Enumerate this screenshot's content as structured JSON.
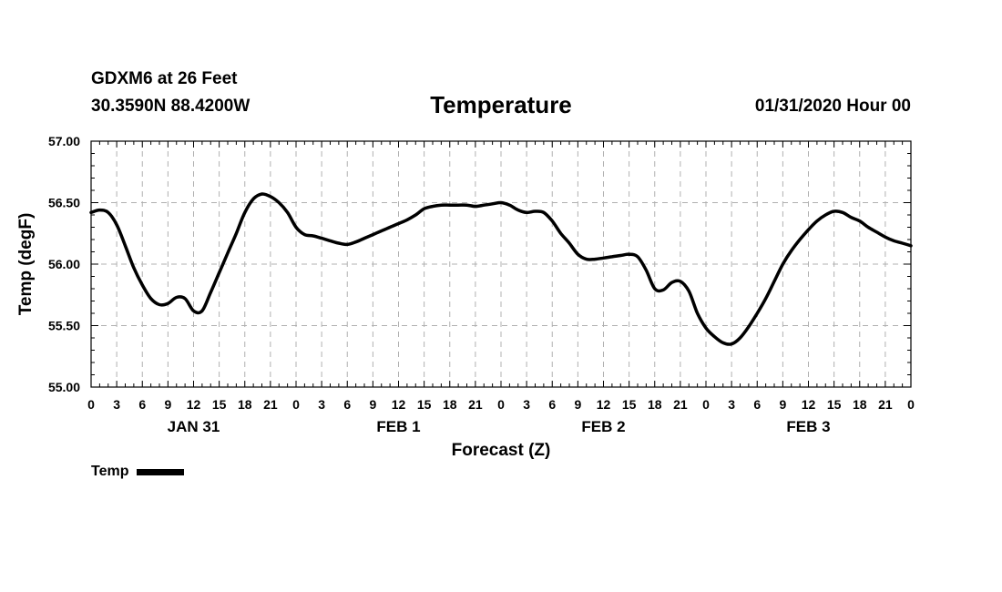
{
  "header": {
    "station": "GDXM6 at 26 Feet",
    "coords": "30.3590N 88.4200W",
    "title": "Temperature",
    "issued": "01/31/2020 Hour 00"
  },
  "legend": {
    "label": "Temp"
  },
  "chart_data": {
    "type": "line",
    "title": "Temperature",
    "xlabel": "Forecast (Z)",
    "ylabel": "Temp (degF)",
    "ylim": [
      55.0,
      57.0
    ],
    "yticks": [
      "55.00",
      "55.50",
      "56.00",
      "56.50",
      "57.00"
    ],
    "xlim_hours": [
      0,
      96
    ],
    "xtick_labels": [
      "0",
      "3",
      "6",
      "9",
      "12",
      "15",
      "18",
      "21",
      "0",
      "3",
      "6",
      "9",
      "12",
      "15",
      "18",
      "21",
      "0",
      "3",
      "6",
      "9",
      "12",
      "15",
      "18",
      "21",
      "0",
      "3",
      "6",
      "9",
      "12",
      "15",
      "18",
      "21",
      "0"
    ],
    "day_labels": [
      {
        "label": "JAN 31",
        "hour": 12
      },
      {
        "label": "FEB 1",
        "hour": 36
      },
      {
        "label": "FEB 2",
        "hour": 60
      },
      {
        "label": "FEB 3",
        "hour": 84
      }
    ],
    "grid": true,
    "legend_position": "bottom-left",
    "series": [
      {
        "name": "Temp",
        "x": [
          0,
          1,
          2,
          3,
          4,
          5,
          6,
          7,
          8,
          9,
          10,
          11,
          12,
          13,
          14,
          15,
          16,
          17,
          18,
          19,
          20,
          21,
          22,
          23,
          24,
          25,
          26,
          27,
          28,
          29,
          30,
          31,
          32,
          33,
          34,
          35,
          36,
          37,
          38,
          39,
          40,
          41,
          42,
          43,
          44,
          45,
          46,
          47,
          48,
          49,
          50,
          51,
          52,
          53,
          54,
          55,
          56,
          57,
          58,
          59,
          60,
          61,
          62,
          63,
          64,
          65,
          66,
          67,
          68,
          69,
          70,
          71,
          72,
          73,
          74,
          75,
          76,
          77,
          78,
          79,
          80,
          81,
          82,
          83,
          84,
          85,
          86,
          87,
          88,
          89,
          90,
          91,
          92,
          93,
          94,
          95,
          96
        ],
        "values": [
          56.42,
          56.44,
          56.42,
          56.32,
          56.15,
          55.97,
          55.83,
          55.72,
          55.67,
          55.68,
          55.73,
          55.72,
          55.62,
          55.62,
          55.77,
          55.93,
          56.09,
          56.25,
          56.42,
          56.53,
          56.57,
          56.55,
          56.5,
          56.42,
          56.3,
          56.24,
          56.23,
          56.21,
          56.19,
          56.17,
          56.16,
          56.18,
          56.21,
          56.24,
          56.27,
          56.3,
          56.33,
          56.36,
          56.4,
          56.45,
          56.47,
          56.48,
          56.48,
          56.48,
          56.48,
          56.47,
          56.48,
          56.49,
          56.5,
          56.48,
          56.44,
          56.42,
          56.43,
          56.42,
          56.35,
          56.25,
          56.17,
          56.08,
          56.04,
          56.04,
          56.05,
          56.06,
          56.07,
          56.08,
          56.06,
          55.95,
          55.8,
          55.79,
          55.85,
          55.86,
          55.78,
          55.6,
          55.48,
          55.41,
          55.36,
          55.35,
          55.4,
          55.49,
          55.6,
          55.72,
          55.86,
          56.0,
          56.11,
          56.2,
          56.28,
          56.35,
          56.4,
          56.43,
          56.42,
          56.38,
          56.35,
          56.3,
          56.26,
          56.22,
          56.19,
          56.17,
          56.15
        ]
      }
    ]
  }
}
